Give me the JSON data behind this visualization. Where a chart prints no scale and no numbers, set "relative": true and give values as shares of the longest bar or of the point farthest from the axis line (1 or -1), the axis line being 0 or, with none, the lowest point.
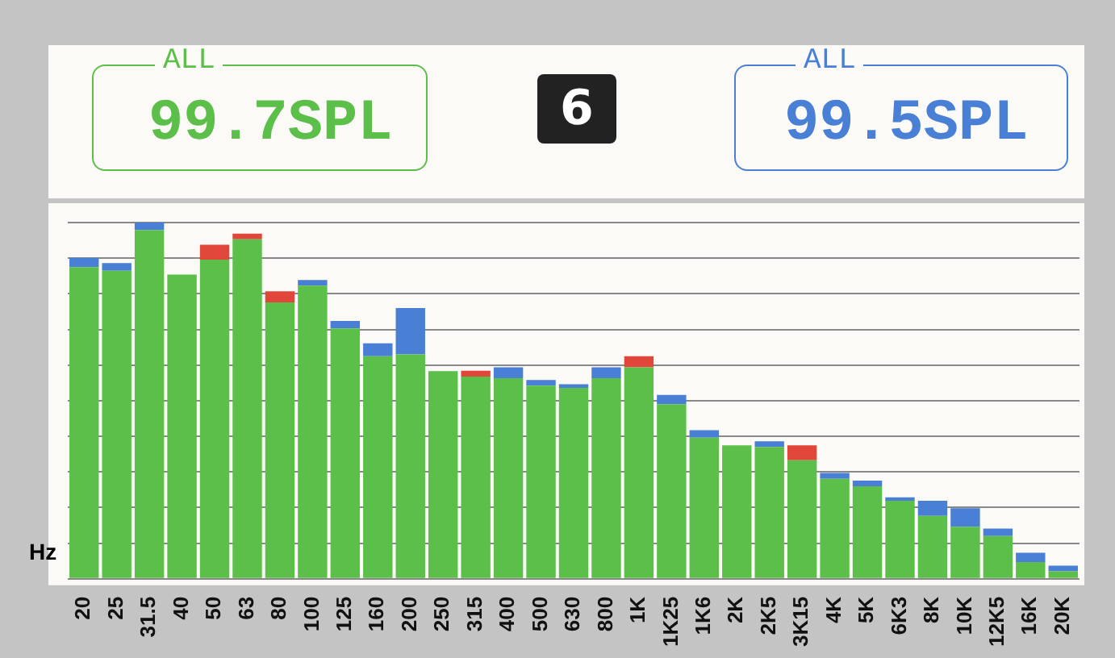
{
  "chart_data": {
    "type": "bar",
    "stacked": true,
    "relative": true,
    "grid": "y",
    "xlabel": "Hz",
    "annotations": [
      "ALL",
      "99.7SPL",
      "6",
      "ALL",
      "99.5SPL"
    ],
    "categories": [
      "20",
      "25",
      "31.5",
      "40",
      "50",
      "63",
      "80",
      "100",
      "125",
      "160",
      "200",
      "250",
      "315",
      "400",
      "500",
      "630",
      "800",
      "1K",
      "1K25",
      "1K6",
      "2K",
      "2K5",
      "3K15",
      "4K",
      "5K",
      "6K3",
      "8K",
      "10K",
      "12K5",
      "16K",
      "20K"
    ],
    "series": [
      {
        "color": "#5cbf4a",
        "values": [
          0.875,
          0.865,
          0.979,
          0.854,
          0.896,
          0.953,
          0.776,
          0.823,
          0.703,
          0.625,
          0.63,
          0.583,
          0.568,
          0.563,
          0.542,
          0.536,
          0.563,
          0.594,
          0.49,
          0.396,
          0.375,
          0.37,
          0.333,
          0.281,
          0.26,
          0.219,
          0.177,
          0.146,
          0.12,
          0.047,
          0.021
        ]
      },
      {
        "colors": [
          "#4a7fd6",
          "#4a7fd6",
          "#4a7fd6",
          "#4a7fd6",
          "#e0463a",
          "#e0463a",
          "#e0463a",
          "#4a7fd6",
          "#4a7fd6",
          "#4a7fd6",
          "#4a7fd6",
          "#4a7fd6",
          "#e0463a",
          "#4a7fd6",
          "#4a7fd6",
          "#4a7fd6",
          "#4a7fd6",
          "#e0463a",
          "#4a7fd6",
          "#4a7fd6",
          "#4a7fd6",
          "#4a7fd6",
          "#e0463a",
          "#4a7fd6",
          "#4a7fd6",
          "#4a7fd6",
          "#4a7fd6",
          "#4a7fd6",
          "#4a7fd6",
          "#4a7fd6",
          "#4a7fd6"
        ],
        "values": [
          0.026,
          0.021,
          0.021,
          0,
          0.042,
          0.016,
          0.031,
          0.016,
          0.021,
          0.036,
          0.13,
          0,
          0.016,
          0.031,
          0.016,
          0.01,
          0.031,
          0.031,
          0.026,
          0.021,
          0,
          0.016,
          0.042,
          0.016,
          0.016,
          0.01,
          0.042,
          0.052,
          0.021,
          0.026,
          0.016
        ]
      }
    ]
  }
}
